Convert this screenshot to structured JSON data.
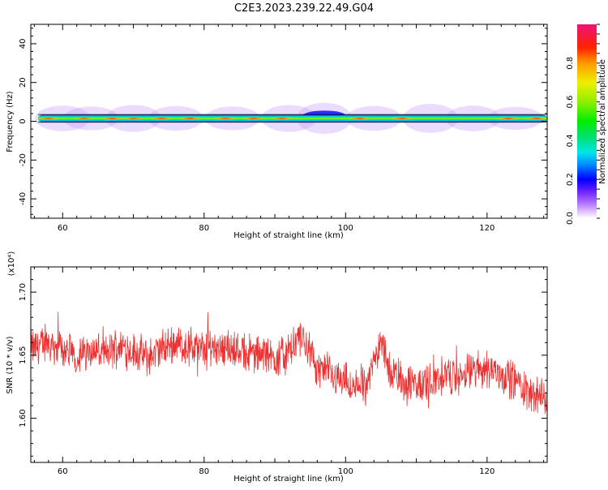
{
  "title": "C2E3.2023.239.22.49.G04",
  "chart_data": [
    {
      "type": "heatmap",
      "xlabel": "Height of straight line (km)",
      "ylabel": "Frequency (Hz)",
      "xlim": [
        55.5,
        128.5
      ],
      "ylim": [
        -50,
        50
      ],
      "x_ticks": [
        60,
        80,
        100,
        120
      ],
      "y_ticks": [
        -40,
        -20,
        0,
        20,
        40
      ],
      "band_center_hz": 1.5,
      "band_halfwidth_hz": 1.8,
      "bright_spots": [
        {
          "x": 58,
          "level": 0.85
        },
        {
          "x": 63,
          "level": 0.8
        },
        {
          "x": 67,
          "level": 0.95
        },
        {
          "x": 70,
          "level": 0.8
        },
        {
          "x": 74,
          "level": 0.9
        },
        {
          "x": 78,
          "level": 0.95
        },
        {
          "x": 83,
          "level": 0.9
        },
        {
          "x": 87,
          "level": 0.95
        },
        {
          "x": 91,
          "level": 0.85
        },
        {
          "x": 102,
          "level": 0.9
        },
        {
          "x": 108,
          "level": 0.9
        },
        {
          "x": 123,
          "level": 0.95
        },
        {
          "x": 127,
          "level": 0.95
        }
      ],
      "colorbar": {
        "label": "Normalized spectral amplitude",
        "ticks": [
          "0.0",
          "0.2",
          "0.4",
          "0.6",
          "0.8"
        ],
        "range": [
          0,
          1
        ]
      }
    },
    {
      "type": "line",
      "xlabel": "Height of straight line (km)",
      "ylabel": "SNR (10 * v/v)",
      "scale_label": "(x10⁴)",
      "xlim": [
        55.5,
        128.5
      ],
      "ylim": [
        1.565,
        1.72
      ],
      "x_ticks": [
        60,
        80,
        100,
        120
      ],
      "y_ticks": [
        "1.60",
        "1.65",
        "1.70"
      ],
      "line_color": "#ee3030",
      "series": [
        {
          "x": [
            55.5,
            58,
            60,
            62,
            64,
            66,
            68,
            70,
            72,
            74,
            76,
            78,
            80,
            82,
            84,
            86,
            88,
            90,
            92,
            93,
            94,
            95,
            96,
            98,
            100,
            101,
            102,
            103,
            104,
            105,
            106,
            108,
            110,
            112,
            114,
            116,
            118,
            120,
            122,
            124,
            126,
            128.5
          ],
          "values": [
            1.655,
            1.66,
            1.655,
            1.648,
            1.655,
            1.65,
            1.658,
            1.653,
            1.648,
            1.655,
            1.66,
            1.655,
            1.655,
            1.658,
            1.655,
            1.652,
            1.65,
            1.648,
            1.652,
            1.66,
            1.665,
            1.65,
            1.64,
            1.635,
            1.63,
            1.62,
            1.63,
            1.625,
            1.645,
            1.665,
            1.64,
            1.63,
            1.625,
            1.63,
            1.635,
            1.632,
            1.638,
            1.64,
            1.635,
            1.63,
            1.62,
            1.615
          ]
        }
      ]
    }
  ]
}
